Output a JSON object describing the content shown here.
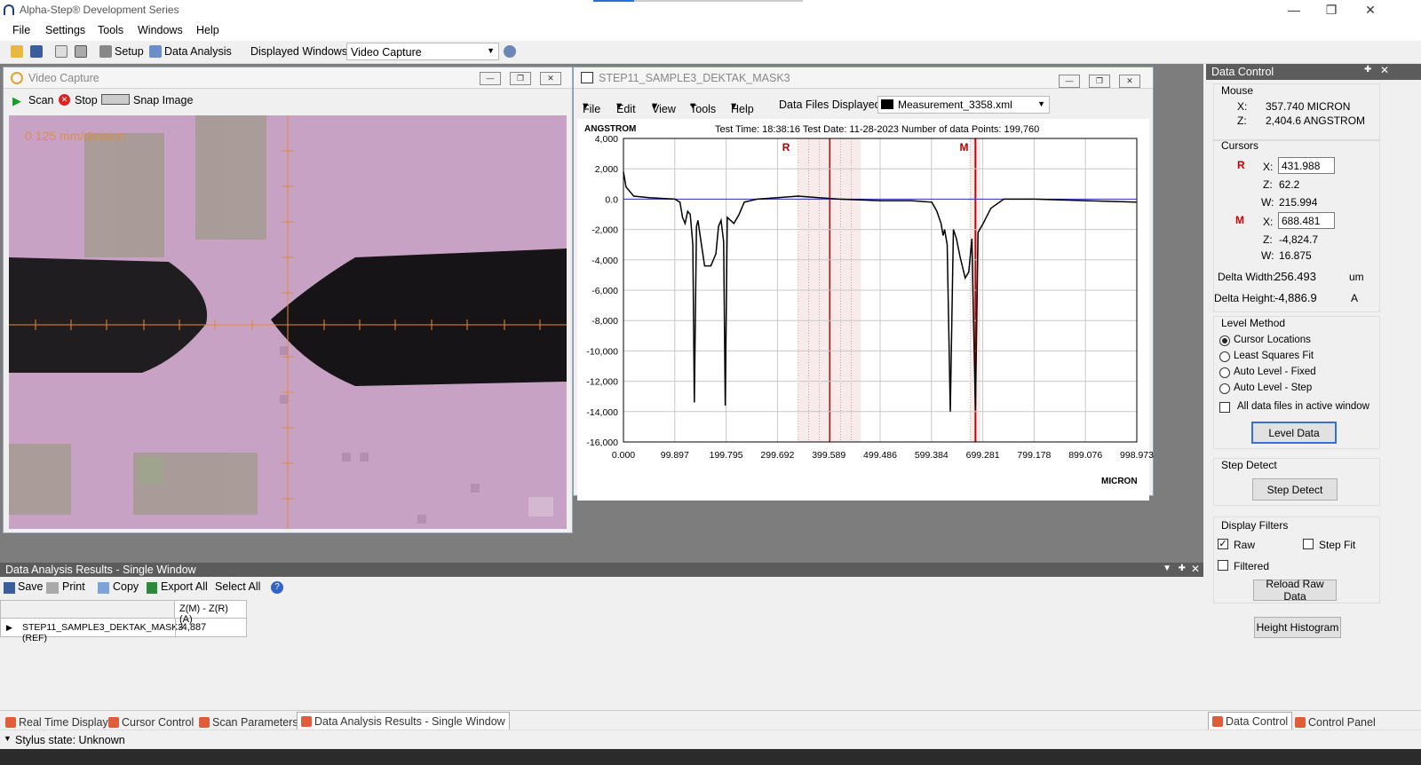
{
  "app": {
    "title": "Alpha-Step® Development Series"
  },
  "menu": [
    "File",
    "Settings",
    "Tools",
    "Windows",
    "Help"
  ],
  "toolbar": {
    "setup": "Setup",
    "data_analysis": "Data Analysis",
    "displayed_label": "Displayed Windows:",
    "displayed_value": "Video Capture"
  },
  "video": {
    "title": "Video Capture",
    "scan": "Scan",
    "stop": "Stop",
    "snap": "Snap Image",
    "scale_text": "0.125 mm/division"
  },
  "data_window": {
    "title": "STEP11_SAMPLE3_DEKTAK_MASK3",
    "menu": [
      "File",
      "Edit",
      "View",
      "Tools",
      "Help"
    ],
    "files_label": "Data Files Displayed:",
    "files_value": "Measurement_3358.xml",
    "y_unit": "ANGSTROM",
    "info": "Test Time: 18:38:16  Test Date: 11-28-2023  Number of data Points: 199,760",
    "x_unit": "MICRON",
    "cursor_r_label": "R",
    "cursor_m_label": "M"
  },
  "chart_data": {
    "type": "line",
    "x_ticks": [
      "0.000",
      "99.897",
      "199.795",
      "299.692",
      "399.589",
      "499.486",
      "599.384",
      "699.281",
      "799.178",
      "899.076",
      "998.973"
    ],
    "y_ticks": [
      "4,000",
      "2,000",
      "0.0",
      "-2,000",
      "-4,000",
      "-6,000",
      "-8,000",
      "-10,000",
      "-12,000",
      "-14,000",
      "-16,000"
    ],
    "xlim": [
      0,
      998.973
    ],
    "ylim": [
      -16000,
      4000
    ],
    "xlabel": "MICRON",
    "ylabel": "ANGSTROM",
    "grid": true,
    "series": [
      {
        "values_xy": [
          [
            0,
            1800
          ],
          [
            5,
            800
          ],
          [
            20,
            200
          ],
          [
            50,
            100
          ],
          [
            100,
            0
          ],
          [
            110,
            -200
          ],
          [
            115,
            -1200
          ],
          [
            120,
            -1600
          ],
          [
            125,
            -800
          ],
          [
            130,
            -1000
          ],
          [
            135,
            -3000
          ],
          [
            138,
            -13400
          ],
          [
            142,
            -1800
          ],
          [
            145,
            -1400
          ],
          [
            150,
            -2600
          ],
          [
            158,
            -4400
          ],
          [
            170,
            -4400
          ],
          [
            180,
            -3600
          ],
          [
            185,
            -1800
          ],
          [
            190,
            -1400
          ],
          [
            195,
            -2800
          ],
          [
            198,
            -13600
          ],
          [
            202,
            -1200
          ],
          [
            215,
            -1600
          ],
          [
            225,
            -1000
          ],
          [
            235,
            -200
          ],
          [
            260,
            0
          ],
          [
            300,
            100
          ],
          [
            340,
            200
          ],
          [
            380,
            100
          ],
          [
            420,
            0
          ],
          [
            500,
            -100
          ],
          [
            560,
            -100
          ],
          [
            600,
            -200
          ],
          [
            610,
            -800
          ],
          [
            618,
            -1600
          ],
          [
            622,
            -2400
          ],
          [
            625,
            -2000
          ],
          [
            630,
            -3000
          ],
          [
            636,
            -14000
          ],
          [
            642,
            -2000
          ],
          [
            648,
            -2600
          ],
          [
            655,
            -3800
          ],
          [
            665,
            -5200
          ],
          [
            672,
            -4800
          ],
          [
            678,
            -2600
          ],
          [
            685,
            -13900
          ],
          [
            690,
            -2200
          ],
          [
            700,
            -1600
          ],
          [
            715,
            -600
          ],
          [
            740,
            0
          ],
          [
            800,
            0
          ],
          [
            900,
            -100
          ],
          [
            998,
            -200
          ]
        ]
      }
    ],
    "cursors": {
      "R": [
        340,
        462
      ],
      "M": [
        675,
        695
      ]
    }
  },
  "data_control": {
    "title": "Data Control",
    "mouse_label": "Mouse",
    "mouse_x_label": "X:",
    "mouse_x": "357.740  MICRON",
    "mouse_z_label": "Z:",
    "mouse_z": "2,404.6  ANGSTROM",
    "cursors_label": "Cursors",
    "r_label": "R",
    "m_label": "M",
    "x_label": "X:",
    "z_label": "Z:",
    "w_label": "W:",
    "r_x": "431.988",
    "r_z": "62.2",
    "r_w": "215.994",
    "m_x": "688.481",
    "m_z": "-4,824.7",
    "m_w": "16.875",
    "delta_width_label": "Delta Width:",
    "delta_width": "256.493",
    "delta_width_unit": "um",
    "delta_height_label": "Delta Height:",
    "delta_height": "-4,886.9",
    "delta_height_unit": "A",
    "level_method_label": "Level Method",
    "level_options": [
      "Cursor Locations",
      "Least Squares Fit",
      "Auto Level - Fixed",
      "Auto Level - Step"
    ],
    "all_data_files": "All data files in active window",
    "level_data_btn": "Level Data",
    "step_detect_label": "Step Detect",
    "step_detect_btn": "Step Detect",
    "display_filters_label": "Display Filters",
    "raw": "Raw",
    "step_fit": "Step Fit",
    "filtered": "Filtered",
    "reload_btn": "Reload Raw Data",
    "height_hist_btn": "Height Histogram"
  },
  "results": {
    "title": "Data Analysis Results - Single Window",
    "save": "Save",
    "print": "Print",
    "copy": "Copy",
    "export_all": "Export All",
    "select_all": "Select All",
    "col_header": "Z(M) - Z(R) (A)",
    "row_name": "STEP11_SAMPLE3_DEKTAK_MASK3 (REF)",
    "row_value": "-4,887"
  },
  "tabs": [
    "Real Time Display",
    "Cursor Control",
    "Scan Parameters",
    "Data Analysis Results - Single Window"
  ],
  "right_tabs": [
    "Data Control",
    "Control Panel"
  ],
  "status": "Stylus state: Unknown"
}
